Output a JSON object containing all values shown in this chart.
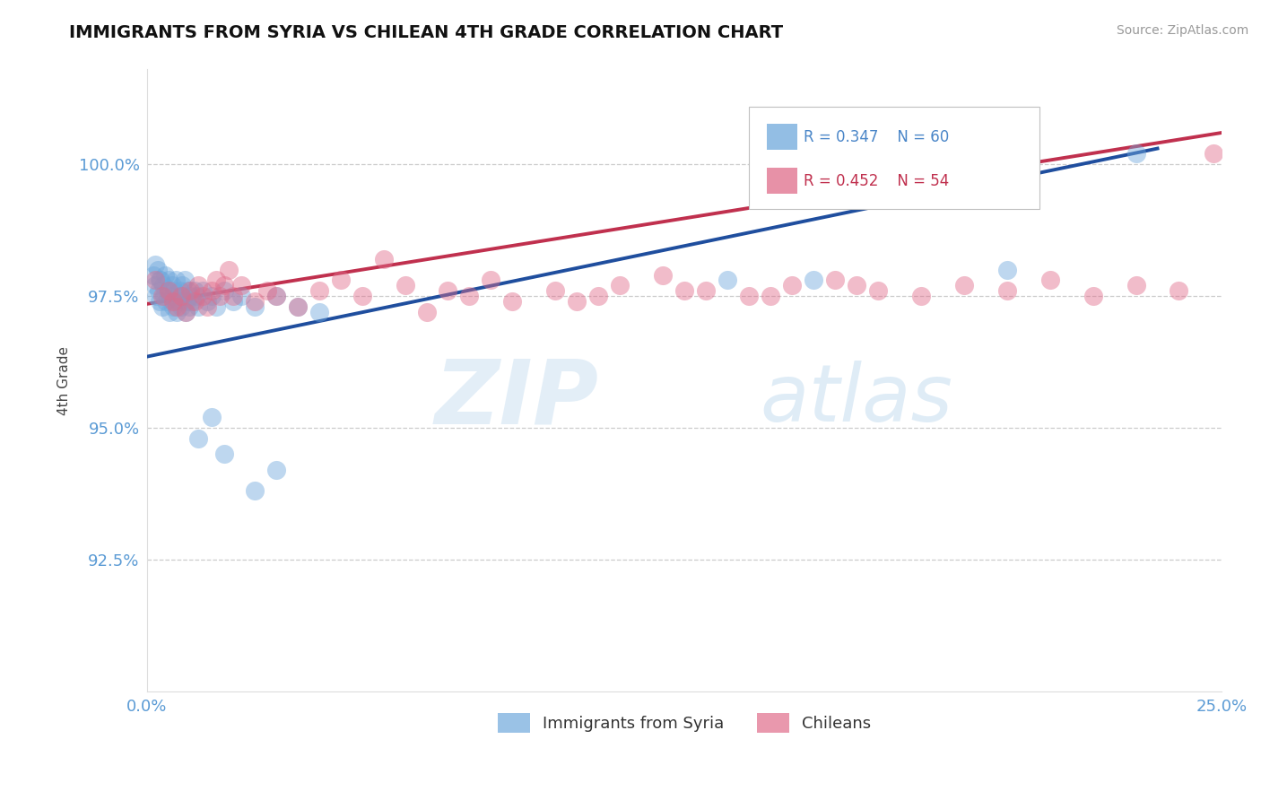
{
  "title": "IMMIGRANTS FROM SYRIA VS CHILEAN 4TH GRADE CORRELATION CHART",
  "source_text": "Source: ZipAtlas.com",
  "ylabel": "4th Grade",
  "xlim": [
    0.0,
    25.0
  ],
  "ylim": [
    90.0,
    101.8
  ],
  "y_ticks": [
    92.5,
    95.0,
    97.5,
    100.0
  ],
  "y_ticklabels": [
    "92.5%",
    "95.0%",
    "97.5%",
    "100.0%"
  ],
  "blue_color": "#6fa8dc",
  "blue_line_color": "#1f4e9e",
  "pink_color": "#e06c8a",
  "pink_line_color": "#c0304e",
  "legend_R_blue": "R = 0.347",
  "legend_N_blue": "N = 60",
  "legend_R_pink": "R = 0.452",
  "legend_N_pink": "N = 54",
  "legend_label_blue": "Immigrants from Syria",
  "legend_label_pink": "Chileans",
  "grid_color": "#cccccc",
  "tick_color": "#5b9bd5",
  "background_color": "#ffffff",
  "reg_blue_x0": 0.0,
  "reg_blue_y0": 96.35,
  "reg_blue_x1": 23.5,
  "reg_blue_y1": 100.3,
  "reg_pink_x0": 0.0,
  "reg_pink_y0": 97.35,
  "reg_pink_x1": 25.0,
  "reg_pink_y1": 100.6,
  "blue_x": [
    0.15,
    0.18,
    0.2,
    0.22,
    0.25,
    0.28,
    0.3,
    0.32,
    0.35,
    0.38,
    0.4,
    0.42,
    0.45,
    0.48,
    0.5,
    0.52,
    0.55,
    0.58,
    0.6,
    0.62,
    0.65,
    0.68,
    0.7,
    0.72,
    0.75,
    0.78,
    0.8,
    0.82,
    0.85,
    0.88,
    0.9,
    0.92,
    0.95,
    0.98,
    1.0,
    1.05,
    1.1,
    1.15,
    1.2,
    1.3,
    1.4,
    1.5,
    1.6,
    1.8,
    2.0,
    2.2,
    2.5,
    3.0,
    3.5,
    4.0,
    1.2,
    1.5,
    1.8,
    2.5,
    3.0,
    13.5,
    15.5,
    20.0,
    23.0,
    0.3
  ],
  "blue_y": [
    97.9,
    98.1,
    97.7,
    97.5,
    98.0,
    97.6,
    97.4,
    97.8,
    97.3,
    97.7,
    97.5,
    97.9,
    97.4,
    97.6,
    97.8,
    97.2,
    97.5,
    97.7,
    97.3,
    97.6,
    97.4,
    97.8,
    97.2,
    97.5,
    97.4,
    97.6,
    97.3,
    97.7,
    97.5,
    97.8,
    97.2,
    97.4,
    97.6,
    97.3,
    97.5,
    97.4,
    97.6,
    97.5,
    97.3,
    97.6,
    97.4,
    97.5,
    97.3,
    97.6,
    97.4,
    97.5,
    97.3,
    97.5,
    97.3,
    97.2,
    94.8,
    95.2,
    94.5,
    93.8,
    94.2,
    97.8,
    97.8,
    98.0,
    100.2,
    97.8
  ],
  "pink_x": [
    0.2,
    0.35,
    0.5,
    0.6,
    0.7,
    0.8,
    0.9,
    1.0,
    1.1,
    1.2,
    1.3,
    1.4,
    1.5,
    1.6,
    1.7,
    1.8,
    1.9,
    2.0,
    2.2,
    2.5,
    2.8,
    3.0,
    3.5,
    4.0,
    4.5,
    5.0,
    6.0,
    7.0,
    7.5,
    8.0,
    8.5,
    9.5,
    10.5,
    11.0,
    12.0,
    13.0,
    14.0,
    15.0,
    16.0,
    17.0,
    18.0,
    19.0,
    20.0,
    21.0,
    22.0,
    23.0,
    24.0,
    24.8,
    10.0,
    12.5,
    14.5,
    16.5,
    6.5,
    5.5
  ],
  "pink_y": [
    97.8,
    97.5,
    97.6,
    97.4,
    97.3,
    97.5,
    97.2,
    97.6,
    97.4,
    97.7,
    97.5,
    97.3,
    97.6,
    97.8,
    97.5,
    97.7,
    98.0,
    97.5,
    97.7,
    97.4,
    97.6,
    97.5,
    97.3,
    97.6,
    97.8,
    97.5,
    97.7,
    97.6,
    97.5,
    97.8,
    97.4,
    97.6,
    97.5,
    97.7,
    97.9,
    97.6,
    97.5,
    97.7,
    97.8,
    97.6,
    97.5,
    97.7,
    97.6,
    97.8,
    97.5,
    97.7,
    97.6,
    100.2,
    97.4,
    97.6,
    97.5,
    97.7,
    97.2,
    98.2
  ]
}
